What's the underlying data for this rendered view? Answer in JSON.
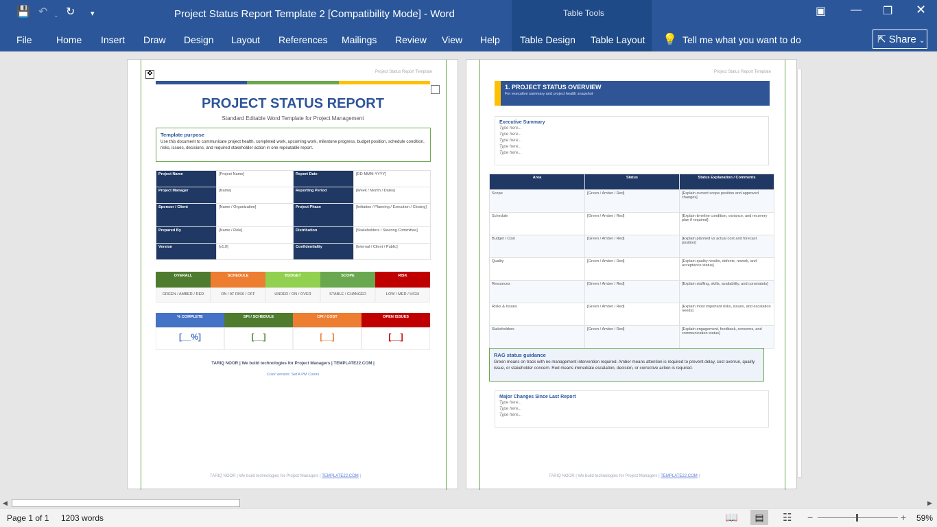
{
  "title": "Project Status Report Template 2 [Compatibility Mode]  -  Word",
  "table_tools": "Table Tools",
  "menu": [
    "File",
    "Home",
    "Insert",
    "Draw",
    "Design",
    "Layout",
    "References",
    "Mailings",
    "Review",
    "View",
    "Help",
    "Table Design",
    "Table Layout"
  ],
  "tellme": "Tell me what you want to do",
  "share": "Share",
  "page1": {
    "header": "Project Status Report Template",
    "title": "PROJECT STATUS REPORT",
    "subtitle": "Standard Editable Word Template for Project Management",
    "purpose_title": "Template purpose",
    "purpose_text": "Use this document to communicate project health, completed work, upcoming work, milestone progress, budget position, schedule condition, risks, issues, decisions, and required stakeholder action in one repeatable report.",
    "info": [
      [
        "Project Name",
        "[Project Name]",
        "Report Date",
        "[DD-MMM-YYYY]"
      ],
      [
        "Project Manager",
        "[Name]",
        "Reporting Period",
        "[Week / Month / Dates]"
      ],
      [
        "Sponsor / Client",
        "[Name / Organization]",
        "Project Phase",
        "[Initiation / Planning / Execution / Closing]"
      ],
      [
        "Prepared By",
        "[Name / Role]",
        "Distribution",
        "[Stakeholders / Steering Committee]"
      ],
      [
        "Version",
        "[v1.0]",
        "Confidentiality",
        "[Internal / Client / Public]"
      ]
    ],
    "status_heads": [
      "OVERALL",
      "SCHEDULE",
      "BUDGET",
      "SCOPE",
      "RISK"
    ],
    "status_colors": [
      "#4f7b2f",
      "#ed7d31",
      "#92d050",
      "#6aa84f",
      "#c00000"
    ],
    "status_vals": [
      "GREEN / AMBER / RED",
      "ON / AT RISK / OFF",
      "UNDER / ON / OVER",
      "STABLE / CHANGED",
      "LOW / MED / HIGH"
    ],
    "kpi_heads": [
      "% COMPLETE",
      "SPI / SCHEDULE",
      "CPI / COST",
      "OPEN ISSUES"
    ],
    "kpi_colors": [
      "#4472c4",
      "#4f7b2f",
      "#ed7d31",
      "#c00000"
    ],
    "kpi_vals": [
      "[__%]",
      "[__]",
      "[__]",
      "[__]"
    ],
    "footer_brand": "TARIQ NOOR | We build technologies for Project Managers | TEMPLATE22.COM |",
    "color_version": "Color version: Set A PM Colors",
    "footer_a": "TARIQ NOOR | We build technologies for Project Managers |",
    "footer_link": "TEMPLATE22.COM",
    "footer_b": "|"
  },
  "page2": {
    "header": "Project Status Report Template",
    "section_title": "1. PROJECT STATUS OVERVIEW",
    "section_sub": "For executive summary and project health snapshot",
    "exec_title": "Executive Summary",
    "type_here": "Type here...",
    "table_heads": [
      "Area",
      "Status",
      "Status Explanation / Comments"
    ],
    "rows": [
      [
        "Scope",
        "[Green / Amber / Red]",
        "[Explain current scope position and approved changes]"
      ],
      [
        "Schedule",
        "[Green / Amber / Red]",
        "[Explain timeline condition, variance, and recovery plan if required]"
      ],
      [
        "Budget / Cost",
        "[Green / Amber / Red]",
        "[Explain planned vs actual cost and forecast position]"
      ],
      [
        "Quality",
        "[Green / Amber / Red]",
        "[Explain quality results, defects, rework, and acceptance status]"
      ],
      [
        "Resources",
        "[Green / Amber / Red]",
        "[Explain staffing, skills, availability, and constraints]"
      ],
      [
        "Risks & Issues",
        "[Green / Amber / Red]",
        "[Explain most important risks, issues, and escalation needs]"
      ],
      [
        "Stakeholders",
        "[Green / Amber / Red]",
        "[Explain engagement, feedback, concerns, and communication status]"
      ]
    ],
    "rag_title": "RAG status guidance",
    "rag_text": "Green means on track with no management intervention required. Amber means attention is required to prevent delay, cost overrun, quality issue, or stakeholder concern. Red means immediate escalation, decision, or corrective action is required.",
    "changes_title": "Major Changes Since Last Report"
  },
  "status": {
    "page": "Page 1 of 1",
    "words": "1203 words",
    "zoom": "59%"
  }
}
